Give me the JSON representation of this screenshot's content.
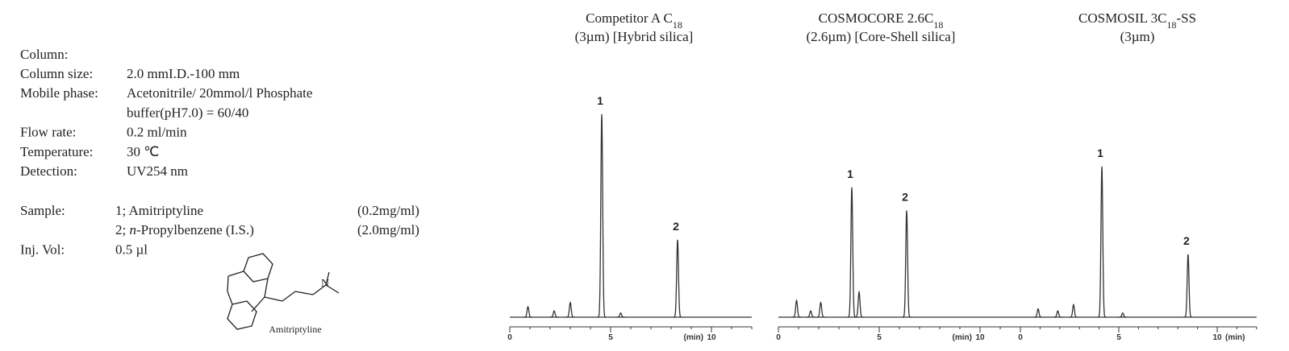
{
  "conditions": {
    "heading": "Column:",
    "rows": [
      {
        "label": "Column size:",
        "value": [
          "2.0 mmI.D.-100 mm"
        ]
      },
      {
        "label": "Mobile phase:",
        "value": [
          "Acetonitrile/ 20mmol/l Phosphate"
        ]
      },
      {
        "label": null,
        "value": [
          "buffer(pH7.0) = 60/40"
        ]
      },
      {
        "label": "Flow rate:",
        "value": [
          "0.2 ml/min"
        ]
      },
      {
        "label": "Temperature:",
        "value": [
          "30 ℃"
        ]
      },
      {
        "label": "Detection:",
        "value": [
          "UV254 nm"
        ]
      }
    ],
    "samples": [
      {
        "label": "Sample:",
        "value": [
          "1; Amitriptyline"
        ],
        "conc": "(0.2mg/ml)"
      },
      {
        "label": null,
        "value": [
          "2; ",
          "n",
          "-Propylbenzene (I.S.)"
        ],
        "conc": "(2.0mg/ml)"
      },
      {
        "label": "Inj. Vol:",
        "value": [
          "0.5 µl"
        ],
        "conc": null
      }
    ],
    "structure_caption": "Amitriptyline"
  },
  "chart_data": [
    {
      "type": "chromatogram",
      "title": [
        [
          "Competitor A  C",
          "18"
        ],
        [
          "(3µm) [Hybrid silica]"
        ]
      ],
      "xlabel": "(min)",
      "xlim": [
        0,
        12
      ],
      "xticks": [
        0,
        5,
        10
      ],
      "peaks": [
        {
          "label": null,
          "time": 0.9,
          "height": 5
        },
        {
          "label": null,
          "time": 2.2,
          "height": 3
        },
        {
          "label": null,
          "time": 3.0,
          "height": 7
        },
        {
          "label": "1",
          "time": 4.56,
          "height": 97
        },
        {
          "label": null,
          "time": 5.5,
          "height": 2
        },
        {
          "label": "2",
          "time": 8.32,
          "height": 37
        }
      ]
    },
    {
      "type": "chromatogram",
      "title": [
        [
          "COSMOCORE 2.6C",
          "18"
        ],
        [
          "(2.6µm) [Core-Shell silica]"
        ]
      ],
      "xlabel": "(min)",
      "xlim": [
        0,
        12
      ],
      "xticks": [
        0,
        5,
        10
      ],
      "peaks": [
        {
          "label": null,
          "time": 0.9,
          "height": 8
        },
        {
          "label": null,
          "time": 1.6,
          "height": 3
        },
        {
          "label": null,
          "time": 2.1,
          "height": 7
        },
        {
          "label": "1",
          "time": 3.64,
          "height": 62
        },
        {
          "label": null,
          "time": 4.0,
          "height": 12
        },
        {
          "label": "2",
          "time": 6.36,
          "height": 51
        }
      ]
    },
    {
      "type": "chromatogram",
      "title": [
        [
          "COSMOSIL 3C",
          "18",
          "-SS"
        ],
        [
          "(3µm)"
        ]
      ],
      "xlabel": "(min)",
      "xlim": [
        0,
        12
      ],
      "xticks": [
        0,
        5,
        10
      ],
      "peaks": [
        {
          "label": null,
          "time": 0.9,
          "height": 4
        },
        {
          "label": null,
          "time": 1.9,
          "height": 3
        },
        {
          "label": null,
          "time": 2.7,
          "height": 6
        },
        {
          "label": "1",
          "time": 4.14,
          "height": 72
        },
        {
          "label": null,
          "time": 5.2,
          "height": 2
        },
        {
          "label": "2",
          "time": 8.52,
          "height": 30
        }
      ]
    }
  ]
}
